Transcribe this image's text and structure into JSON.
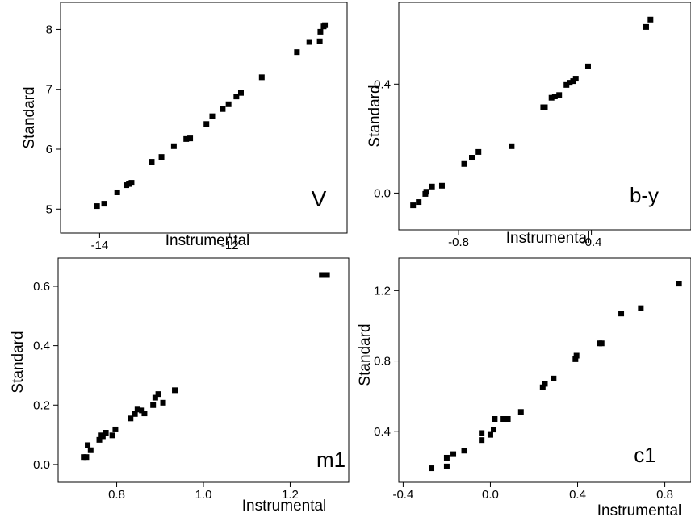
{
  "chart_data": [
    {
      "type": "scatter",
      "panel_label": "V",
      "xlabel": "Instrumental",
      "ylabel": "Standard",
      "xlim": [
        -14.6,
        -10.2
      ],
      "ylim": [
        4.6,
        8.45
      ],
      "xticks": [
        -14,
        -12
      ],
      "xtick_labels": [
        "-14",
        "-12"
      ],
      "yticks": [
        5,
        6,
        7,
        8
      ],
      "ytick_labels": [
        "5",
        "6",
        "7",
        "8"
      ],
      "marker_color": "#000000",
      "grid": false,
      "series": [
        {
          "x": [
            -14.04,
            -13.93,
            -13.73,
            -13.59,
            -13.55,
            -13.51,
            -13.2,
            -13.05,
            -12.86,
            -12.67,
            -12.61,
            -12.36,
            -12.27,
            -12.11,
            -12.02,
            -11.9,
            -11.83,
            -11.51,
            -10.97,
            -10.78,
            -10.62,
            -10.61,
            -10.56,
            -10.54
          ],
          "y": [
            5.05,
            5.09,
            5.28,
            5.4,
            5.42,
            5.44,
            5.79,
            5.87,
            6.05,
            6.17,
            6.18,
            6.42,
            6.55,
            6.67,
            6.75,
            6.88,
            6.94,
            7.2,
            7.62,
            7.79,
            7.8,
            7.96,
            8.05,
            8.07
          ]
        }
      ]
    },
    {
      "type": "scatter",
      "panel_label": "b-y",
      "xlabel": "Instrumental",
      "ylabel": "Standard",
      "xlim": [
        -0.98,
        -0.1
      ],
      "ylim": [
        -0.135,
        0.7
      ],
      "xticks": [
        -0.8,
        -0.4
      ],
      "xtick_labels": [
        "-0.8",
        "-0.4"
      ],
      "yticks": [
        0.0,
        0.4
      ],
      "ytick_labels": [
        "0.0",
        "0.4"
      ],
      "marker_color": "#000000",
      "grid": false,
      "series": [
        {
          "x": [
            -0.937,
            -0.92,
            -0.9,
            -0.897,
            -0.88,
            -0.85,
            -0.783,
            -0.76,
            -0.74,
            -0.64,
            -0.545,
            -0.54,
            -0.52,
            -0.51,
            -0.497,
            -0.475,
            -0.465,
            -0.455,
            -0.447,
            -0.41,
            -0.235,
            -0.222
          ],
          "y": [
            -0.045,
            -0.033,
            -0.003,
            0.005,
            0.024,
            0.027,
            0.107,
            0.13,
            0.151,
            0.172,
            0.315,
            0.315,
            0.35,
            0.355,
            0.36,
            0.397,
            0.405,
            0.411,
            0.42,
            0.465,
            0.61,
            0.637
          ]
        }
      ]
    },
    {
      "type": "scatter",
      "panel_label": "m1",
      "xlabel": "Instrumental",
      "ylabel": "Standard",
      "xlim": [
        0.665,
        1.335
      ],
      "ylim": [
        -0.06,
        0.695
      ],
      "xticks": [
        0.8,
        1.0,
        1.2
      ],
      "xtick_labels": [
        "0.8",
        "1.0",
        "1.2"
      ],
      "yticks": [
        0.0,
        0.2,
        0.4,
        0.6
      ],
      "ytick_labels": [
        "0.0",
        "0.2",
        "0.4",
        "0.6"
      ],
      "marker_color": "#000000",
      "grid": false,
      "series": [
        {
          "x": [
            0.724,
            0.73,
            0.733,
            0.74,
            0.76,
            0.765,
            0.768,
            0.775,
            0.79,
            0.797,
            0.832,
            0.842,
            0.848,
            0.858,
            0.864,
            0.884,
            0.889,
            0.896,
            0.907,
            0.934,
            1.273,
            1.285
          ],
          "y": [
            0.025,
            0.025,
            0.065,
            0.048,
            0.083,
            0.098,
            0.095,
            0.107,
            0.098,
            0.118,
            0.155,
            0.17,
            0.185,
            0.182,
            0.172,
            0.2,
            0.225,
            0.237,
            0.208,
            0.25,
            0.638,
            0.638
          ]
        }
      ]
    },
    {
      "type": "scatter",
      "panel_label": "c1",
      "xlabel": "Instrumental",
      "ylabel": "Standard",
      "xlim": [
        -0.42,
        0.92
      ],
      "ylim": [
        0.11,
        1.385
      ],
      "xticks": [
        -0.4,
        0.0,
        0.4,
        0.8
      ],
      "xtick_labels": [
        "-0.4",
        "0.0",
        "0.4",
        "0.8"
      ],
      "yticks": [
        0.4,
        0.8,
        1.2
      ],
      "ytick_labels": [
        "0.4",
        "0.8",
        "1.2"
      ],
      "marker_color": "#000000",
      "grid": false,
      "series": [
        {
          "x": [
            -0.27,
            -0.2,
            -0.2,
            -0.17,
            -0.12,
            -0.04,
            -0.04,
            0.0,
            0.015,
            0.02,
            0.06,
            0.08,
            0.14,
            0.24,
            0.25,
            0.29,
            0.39,
            0.395,
            0.5,
            0.51,
            0.6,
            0.69,
            0.865
          ],
          "y": [
            0.19,
            0.2,
            0.25,
            0.27,
            0.29,
            0.35,
            0.39,
            0.38,
            0.41,
            0.47,
            0.47,
            0.47,
            0.51,
            0.65,
            0.67,
            0.7,
            0.81,
            0.83,
            0.9,
            0.9,
            1.07,
            1.1,
            1.24
          ]
        }
      ]
    }
  ]
}
